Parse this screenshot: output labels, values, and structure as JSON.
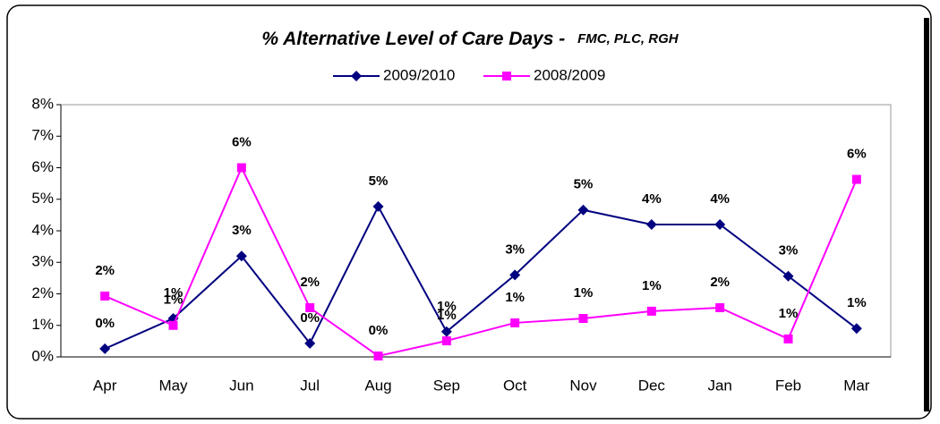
{
  "chart_data": {
    "type": "line",
    "title": "% Alternative Level of Care Days -",
    "subtitle": "FMC, PLC, RGH",
    "categories": [
      "Apr",
      "May",
      "Jun",
      "Jul",
      "Aug",
      "Sep",
      "Oct",
      "Nov",
      "Dec",
      "Jan",
      "Feb",
      "Mar"
    ],
    "series": [
      {
        "name": "2009/2010",
        "color": "#000080",
        "marker": "diamond",
        "values": [
          0.26,
          1.22,
          3.2,
          0.43,
          4.77,
          0.8,
          2.6,
          4.66,
          4.2,
          4.2,
          2.56,
          0.9
        ],
        "value_labels": [
          "0%",
          "1%",
          "3%",
          "0%",
          "5%",
          "1%",
          "3%",
          "5%",
          "4%",
          "4%",
          "3%",
          "1%"
        ]
      },
      {
        "name": "2008/2009",
        "color": "#ff00ff",
        "marker": "square",
        "values": [
          1.93,
          1.0,
          6.0,
          1.56,
          0.03,
          0.51,
          1.08,
          1.22,
          1.45,
          1.56,
          0.57,
          5.63
        ],
        "value_labels": [
          "2%",
          "1%",
          "6%",
          "2%",
          "0%",
          "1%",
          "1%",
          "1%",
          "1%",
          "2%",
          "1%",
          "6%"
        ]
      }
    ],
    "ylim": [
      0,
      8
    ],
    "yticks": [
      {
        "value": 0,
        "label": "0%"
      },
      {
        "value": 1,
        "label": "1%"
      },
      {
        "value": 2,
        "label": "2%"
      },
      {
        "value": 3,
        "label": "3%"
      },
      {
        "value": 4,
        "label": "4%"
      },
      {
        "value": 5,
        "label": "5%"
      },
      {
        "value": 6,
        "label": "6%"
      },
      {
        "value": 7,
        "label": "7%"
      },
      {
        "value": 8,
        "label": "8%"
      }
    ],
    "legend": "top"
  }
}
